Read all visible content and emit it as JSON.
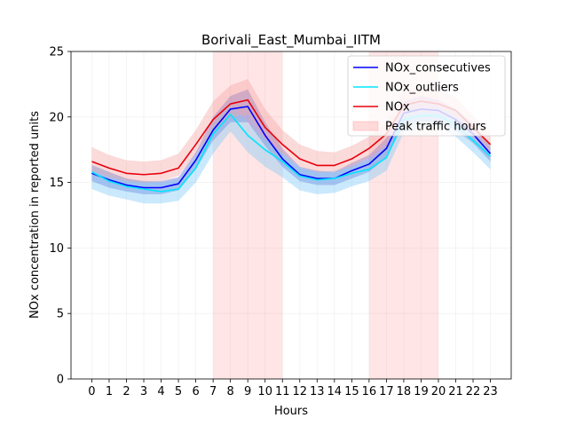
{
  "chart_data": {
    "type": "line",
    "title": "Borivali_East_Mumbai_IITM",
    "xlabel": "Hours",
    "ylabel": "NOx concentration in reported units",
    "x": [
      0,
      1,
      2,
      3,
      4,
      5,
      6,
      7,
      8,
      9,
      10,
      11,
      12,
      13,
      14,
      15,
      16,
      17,
      18,
      19,
      20,
      21,
      22,
      23
    ],
    "xlim": [
      -1.2,
      24.2
    ],
    "ylim": [
      0,
      25
    ],
    "yticks": [
      0,
      5,
      10,
      15,
      20,
      25
    ],
    "grid": true,
    "legend_position": "top-right",
    "series": [
      {
        "name": "NOx_consecutives",
        "color": "#0000ff",
        "band_color": "#4f5fd0",
        "values": [
          15.7,
          15.2,
          14.8,
          14.6,
          14.6,
          14.9,
          16.7,
          19.0,
          20.6,
          20.8,
          18.6,
          16.8,
          15.6,
          15.3,
          15.3,
          15.9,
          16.4,
          17.6,
          20.3,
          20.6,
          20.5,
          19.8,
          18.7,
          17.2
        ],
        "lower": [
          15.1,
          14.6,
          14.3,
          14.1,
          14.1,
          14.4,
          16.0,
          18.2,
          19.6,
          19.6,
          17.8,
          16.2,
          15.1,
          14.8,
          14.8,
          15.3,
          15.8,
          16.9,
          19.4,
          19.7,
          19.6,
          19.0,
          18.0,
          16.6
        ],
        "upper": [
          16.3,
          15.8,
          15.3,
          15.1,
          15.1,
          15.4,
          17.3,
          20.0,
          21.6,
          22.1,
          19.6,
          17.6,
          16.2,
          15.9,
          15.8,
          16.5,
          17.1,
          18.4,
          21.2,
          21.6,
          21.3,
          20.6,
          19.5,
          17.8
        ]
      },
      {
        "name": "NOx_outliers",
        "color": "#00e5ff",
        "band_color": "#7ec8f7",
        "values": [
          15.8,
          15.1,
          14.7,
          14.5,
          14.3,
          14.5,
          16.1,
          18.7,
          20.2,
          18.6,
          17.5,
          16.6,
          15.5,
          15.2,
          15.3,
          15.7,
          16.0,
          16.9,
          19.8,
          20.1,
          20.1,
          19.4,
          18.2,
          17.0
        ],
        "lower": [
          14.5,
          14.0,
          13.7,
          13.4,
          13.4,
          13.6,
          15.0,
          17.2,
          18.9,
          17.3,
          16.2,
          15.4,
          14.4,
          14.1,
          14.2,
          14.7,
          15.1,
          15.9,
          18.8,
          19.2,
          19.2,
          18.5,
          17.3,
          16.0
        ],
        "upper": [
          16.4,
          15.8,
          15.3,
          15.1,
          15.0,
          15.2,
          16.9,
          19.6,
          21.0,
          19.5,
          18.3,
          17.3,
          16.1,
          15.8,
          15.9,
          16.3,
          16.7,
          17.6,
          20.4,
          20.6,
          20.7,
          20.0,
          18.9,
          17.6
        ]
      },
      {
        "name": "NOx",
        "color": "#e8000b",
        "band_color": "#f4a3a3",
        "values": [
          16.6,
          16.1,
          15.7,
          15.6,
          15.7,
          16.1,
          17.9,
          19.8,
          21.0,
          21.3,
          19.2,
          17.9,
          16.8,
          16.3,
          16.3,
          16.8,
          17.6,
          18.7,
          20.9,
          21.2,
          21.0,
          20.5,
          19.2,
          17.9
        ],
        "lower": [
          15.9,
          15.4,
          15.1,
          15.0,
          15.1,
          15.5,
          17.2,
          18.9,
          20.0,
          20.2,
          18.4,
          17.2,
          16.2,
          15.8,
          15.8,
          16.2,
          16.9,
          17.9,
          20.1,
          20.4,
          20.3,
          19.8,
          18.5,
          17.2
        ],
        "upper": [
          17.7,
          17.1,
          16.7,
          16.6,
          16.7,
          17.2,
          19.0,
          21.2,
          22.4,
          22.9,
          20.6,
          19.0,
          17.9,
          17.4,
          17.3,
          17.8,
          18.5,
          19.6,
          22.0,
          22.3,
          22.1,
          21.5,
          20.1,
          18.9
        ]
      }
    ],
    "shaded_regions": {
      "name": "Peak traffic hours",
      "color": "#ff9999",
      "ranges": [
        [
          7,
          11
        ],
        [
          16,
          20
        ]
      ]
    }
  }
}
